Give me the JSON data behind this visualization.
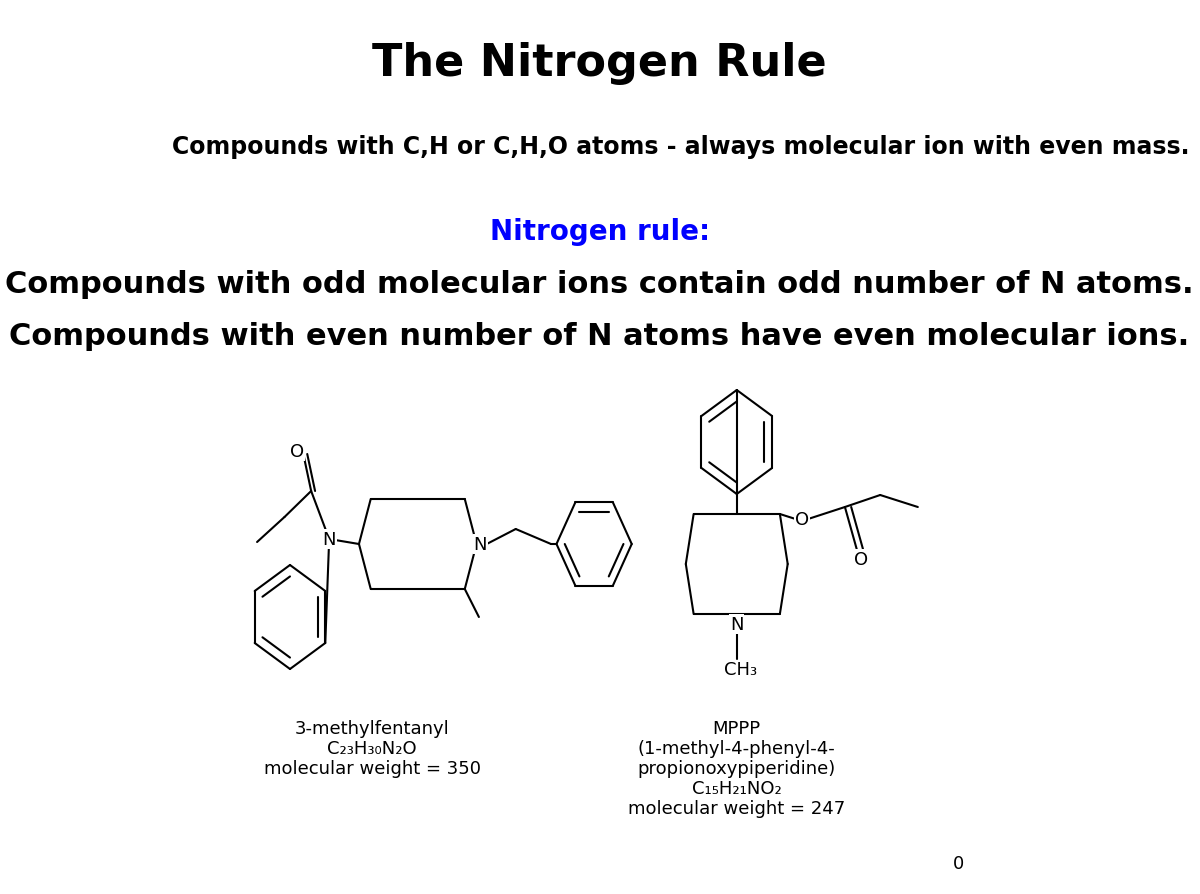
{
  "title": "The Nitrogen Rule",
  "title_fontsize": 32,
  "title_fontweight": "bold",
  "bg_color": "#ffffff",
  "text_color": "#000000",
  "blue_color": "#0000ff",
  "line1": "Compounds with C,H or C,H,O atoms - always molecular ion with even mass.",
  "line1_fontsize": 17,
  "line1_fontweight": "bold",
  "line2": "Nitrogen rule:",
  "line2_fontsize": 20,
  "line2_fontweight": "bold",
  "line3": "Compounds with odd molecular ions contain odd number of N atoms.",
  "line3_fontsize": 22,
  "line3_fontweight": "bold",
  "line4": "Compounds with even number of N atoms have even molecular ions.",
  "line4_fontsize": 22,
  "line4_fontweight": "bold",
  "label1_line1": "3-methylfentanyl",
  "label1_line2": "C₂₃H₃₀N₂O",
  "label1_line3": "molecular weight = 350",
  "label2_line1": "MPPP",
  "label2_line2": "(1-methyl-4-phenyl-4-",
  "label2_line3": "propionoxypiperidine)",
  "label2_line4": "C₁₅H₂₁NO₂",
  "label2_line5": "molecular weight = 247",
  "slide_num": "0",
  "label_fontsize": 13
}
